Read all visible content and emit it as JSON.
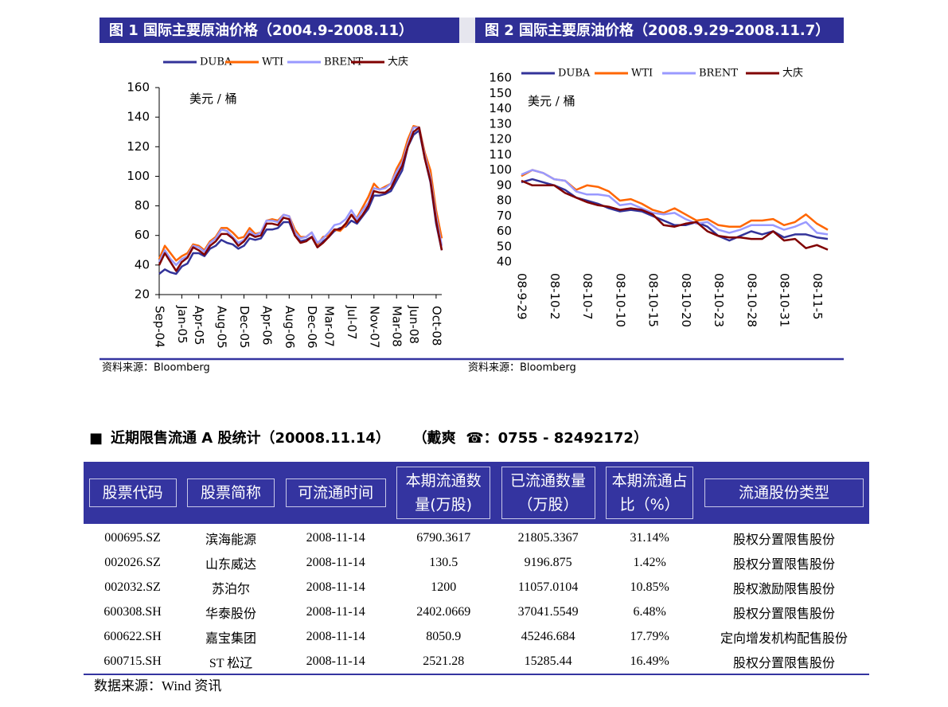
{
  "chart_data": [
    {
      "type": "line",
      "title": "图 1  国际主要原油价格（2004.9-2008.11）",
      "annotation": "美元 / 桶",
      "source": "资料来源：Bloomberg",
      "categories": [
        "Sep-04",
        null,
        null,
        null,
        "Jan-05",
        null,
        null,
        "Apr-05",
        null,
        null,
        null,
        "Aug-05",
        null,
        null,
        null,
        "Dec-05",
        null,
        null,
        null,
        "Apr-06",
        null,
        null,
        null,
        "Aug-06",
        null,
        null,
        null,
        "Dec-06",
        null,
        null,
        "Mar-07",
        null,
        null,
        null,
        "Jul-07",
        null,
        null,
        null,
        "Nov-07",
        null,
        null,
        null,
        "Mar-08",
        null,
        null,
        "Jun-08",
        null,
        null,
        null,
        "Oct-08",
        null
      ],
      "series": [
        {
          "name": "DUBA",
          "color": "#333399",
          "values": [
            34,
            37,
            35,
            34,
            39,
            41,
            48,
            48,
            46,
            51,
            53,
            57,
            55,
            54,
            51,
            53,
            58,
            57,
            58,
            64,
            64,
            65,
            69,
            69,
            60,
            56,
            57,
            59,
            52,
            56,
            59,
            63,
            65,
            66,
            70,
            68,
            73,
            78,
            87,
            87,
            88,
            90,
            97,
            104,
            120,
            128,
            131,
            112,
            96,
            68,
            50
          ]
        },
        {
          "name": "WTI",
          "color": "#ff6600",
          "values": [
            44,
            53,
            48,
            43,
            46,
            48,
            54,
            53,
            50,
            56,
            59,
            65,
            65,
            62,
            58,
            59,
            65,
            61,
            62,
            70,
            71,
            70,
            74,
            73,
            64,
            59,
            59,
            62,
            54,
            59,
            60,
            64,
            63,
            67,
            74,
            72,
            79,
            86,
            95,
            91,
            93,
            95,
            105,
            112,
            125,
            134,
            133,
            116,
            104,
            77,
            58
          ]
        },
        {
          "name": "BRENT",
          "color": "#9999ff",
          "values": [
            42,
            50,
            44,
            40,
            44,
            46,
            53,
            52,
            49,
            55,
            58,
            64,
            63,
            59,
            55,
            57,
            63,
            60,
            62,
            70,
            70,
            69,
            74,
            73,
            62,
            58,
            59,
            62,
            55,
            58,
            62,
            67,
            68,
            71,
            77,
            71,
            77,
            82,
            92,
            91,
            92,
            95,
            103,
            109,
            122,
            133,
            133,
            114,
            99,
            73,
            53
          ]
        },
        {
          "name": "大庆",
          "color": "#800000",
          "values": [
            40,
            48,
            42,
            36,
            42,
            45,
            52,
            50,
            47,
            53,
            56,
            61,
            61,
            58,
            53,
            56,
            61,
            59,
            60,
            68,
            68,
            67,
            72,
            71,
            60,
            55,
            56,
            59,
            52,
            55,
            59,
            64,
            64,
            68,
            74,
            69,
            74,
            80,
            90,
            89,
            89,
            92,
            100,
            107,
            120,
            130,
            133,
            112,
            97,
            70,
            50
          ]
        }
      ],
      "ylim": [
        20,
        160
      ],
      "yticks": [
        20,
        40,
        60,
        80,
        100,
        120,
        140,
        160
      ],
      "grid": false,
      "legend": "top"
    },
    {
      "type": "line",
      "title": "图 2  国际主要原油价格（2008.9.29-2008.11.7）",
      "annotation": "美元 / 桶",
      "source": "资料来源：Bloomberg",
      "categories": [
        "08-9-29",
        null,
        null,
        "08-10-2",
        null,
        null,
        "08-10-7",
        null,
        null,
        "08-10-10",
        null,
        null,
        "08-10-15",
        null,
        null,
        "08-10-20",
        null,
        null,
        "08-10-23",
        null,
        null,
        "08-10-28",
        null,
        null,
        "08-10-31",
        null,
        null,
        "08-11-5",
        null
      ],
      "series": [
        {
          "name": "DUBA",
          "color": "#333399",
          "values": [
            92,
            94,
            92,
            90,
            87,
            82,
            80,
            78,
            75,
            73,
            74,
            73,
            70,
            67,
            64,
            64,
            66,
            63,
            57,
            54,
            57,
            60,
            58,
            60,
            56,
            58,
            58,
            56,
            55
          ]
        },
        {
          "name": "WTI",
          "color": "#ff6600",
          "values": [
            96,
            100,
            98,
            94,
            93,
            87,
            90,
            89,
            86,
            80,
            81,
            78,
            74,
            72,
            75,
            71,
            67,
            68,
            64,
            63,
            63,
            67,
            67,
            68,
            64,
            66,
            71,
            65,
            61
          ]
        },
        {
          "name": "BRENT",
          "color": "#9999ff",
          "values": [
            97,
            100,
            98,
            94,
            93,
            86,
            84,
            84,
            83,
            77,
            78,
            75,
            72,
            71,
            72,
            68,
            65,
            66,
            61,
            59,
            61,
            64,
            64,
            64,
            61,
            63,
            66,
            59,
            58
          ]
        },
        {
          "name": "大庆",
          "color": "#800000",
          "values": [
            93,
            90,
            90,
            90,
            85,
            82,
            79,
            77,
            76,
            74,
            75,
            74,
            71,
            64,
            63,
            65,
            66,
            60,
            57,
            56,
            56,
            55,
            55,
            60,
            54,
            55,
            49,
            51,
            48
          ]
        }
      ],
      "ylim": [
        40,
        160
      ],
      "yticks": [
        40,
        50,
        60,
        70,
        80,
        90,
        100,
        110,
        120,
        130,
        140,
        150,
        160
      ],
      "grid": false,
      "legend": "top"
    }
  ],
  "section": {
    "bullet": "■",
    "title": "近期限售流通 A 股统计（20008.11.14）",
    "contact": "（戴爽  ☎：0755 - 82492172）"
  },
  "table": {
    "header": [
      "股票代码",
      "股票简称",
      "可流通时间",
      "本期流通数量(万股)",
      "已流通数量（万股）",
      "本期流通占比（%）",
      "流通股份类型"
    ],
    "rows": [
      [
        "000695.SZ",
        "滨海能源",
        "2008-11-14",
        "6790.3617",
        "21805.3367",
        "31.14%",
        "股权分置限售股份"
      ],
      [
        "002026.SZ",
        "山东威达",
        "2008-11-14",
        "130.5",
        "9196.875",
        "1.42%",
        "股权分置限售股份"
      ],
      [
        "002032.SZ",
        "苏泊尔",
        "2008-11-14",
        "1200",
        "11057.0104",
        "10.85%",
        "股权激励限售股份"
      ],
      [
        "600308.SH",
        "华泰股份",
        "2008-11-14",
        "2402.0669",
        "37041.5549",
        "6.48%",
        "股权分置限售股份"
      ],
      [
        "600622.SH",
        "嘉宝集团",
        "2008-11-14",
        "8050.9",
        "45246.684",
        "17.79%",
        "定向增发机构配售股份"
      ],
      [
        "600715.SH",
        "ST 松辽",
        "2008-11-14",
        "2521.28",
        "15285.44",
        "16.49%",
        "股权分置限售股份"
      ]
    ],
    "source": "数据来源：Wind 资讯"
  }
}
